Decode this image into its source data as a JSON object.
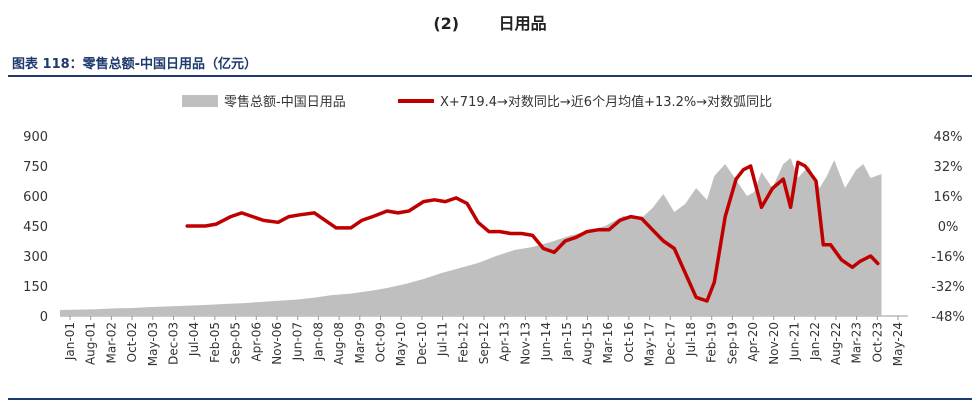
{
  "heading": {
    "number": "(2)",
    "title": "日用品"
  },
  "figure_title": "图表 118：零售总额-中国日用品（亿元）",
  "colors": {
    "area": "#bfbfbf",
    "line": "#c00000",
    "title": "#1f3a6e"
  },
  "chart_data": {
    "type": "area",
    "title": "",
    "legend_position": "top",
    "grid": false,
    "y_left": {
      "min": 0,
      "max": 900,
      "ticks": [
        "0",
        "150",
        "300",
        "450",
        "600",
        "750",
        "900"
      ]
    },
    "y_right": {
      "min": -48,
      "max": 48,
      "ticks": [
        "-48%",
        "-32%",
        "-16%",
        "0%",
        "16%",
        "32%",
        "48%"
      ]
    },
    "x_ticks": [
      "Jan-01",
      "Aug-01",
      "Mar-02",
      "Oct-02",
      "May-03",
      "Dec-03",
      "Jul-04",
      "Feb-05",
      "Sep-05",
      "Apr-06",
      "Nov-06",
      "Jun-07",
      "Jan-08",
      "Aug-08",
      "Mar-09",
      "Oct-09",
      "May-10",
      "Dec-10",
      "Jul-11",
      "Feb-12",
      "Sep-12",
      "Apr-13",
      "Nov-13",
      "Jun-14",
      "Jan-15",
      "Aug-15",
      "Mar-16",
      "Oct-16",
      "May-17",
      "Dec-17",
      "Jul-18",
      "Feb-19",
      "Sep-19",
      "Apr-20",
      "Nov-20",
      "Jun-21",
      "Jan-22",
      "Aug-22",
      "Mar-23",
      "Oct-23",
      "May-24"
    ],
    "series": [
      {
        "name": "零售总额-中国日用品",
        "type": "area",
        "axis": "left",
        "x": [
          2001.0,
          2001.5,
          2002.0,
          2002.5,
          2003.0,
          2003.5,
          2004.0,
          2004.5,
          2005.0,
          2005.5,
          2006.0,
          2006.5,
          2007.0,
          2007.5,
          2008.0,
          2008.5,
          2009.0,
          2009.5,
          2010.0,
          2010.5,
          2011.0,
          2011.5,
          2012.0,
          2012.5,
          2013.0,
          2013.5,
          2014.0,
          2014.5,
          2015.0,
          2015.5,
          2016.0,
          2016.5,
          2017.0,
          2017.3,
          2017.6,
          2017.9,
          2018.2,
          2018.5,
          2018.8,
          2019.0,
          2019.3,
          2019.6,
          2019.9,
          2020.1,
          2020.3,
          2020.6,
          2020.9,
          2021.1,
          2021.3,
          2021.6,
          2021.9,
          2022.1,
          2022.3,
          2022.6,
          2022.9,
          2023.1,
          2023.3,
          2023.6
        ],
        "values": [
          30,
          32,
          34,
          38,
          40,
          45,
          48,
          52,
          55,
          60,
          64,
          70,
          76,
          82,
          92,
          105,
          112,
          125,
          140,
          160,
          185,
          215,
          240,
          265,
          300,
          330,
          345,
          370,
          400,
          425,
          450,
          500,
          490,
          540,
          610,
          520,
          560,
          640,
          580,
          700,
          760,
          680,
          600,
          620,
          720,
          640,
          760,
          790,
          690,
          750,
          640,
          700,
          780,
          640,
          730,
          760,
          690,
          710
        ]
      },
      {
        "name": "X+719.4→对数同比→近6个月均值+13.2%→对数弧同比",
        "type": "line",
        "axis": "right",
        "x": [
          2004.5,
          2005.0,
          2005.3,
          2005.7,
          2006.0,
          2006.3,
          2006.6,
          2007.0,
          2007.3,
          2007.6,
          2008.0,
          2008.3,
          2008.6,
          2009.0,
          2009.3,
          2009.6,
          2010.0,
          2010.3,
          2010.6,
          2011.0,
          2011.3,
          2011.6,
          2011.9,
          2012.2,
          2012.5,
          2012.8,
          2013.1,
          2013.4,
          2013.7,
          2014.0,
          2014.3,
          2014.6,
          2014.9,
          2015.2,
          2015.5,
          2015.8,
          2016.1,
          2016.4,
          2016.7,
          2017.0,
          2017.3,
          2017.6,
          2017.9,
          2018.2,
          2018.5,
          2018.8,
          2019.0,
          2019.3,
          2019.6,
          2019.8,
          2020.0,
          2020.3,
          2020.6,
          2020.9,
          2021.1,
          2021.3,
          2021.5,
          2021.8,
          2022.0,
          2022.2,
          2022.5,
          2022.8,
          2023.0,
          2023.3,
          2023.5
        ],
        "values": [
          0,
          0,
          1,
          5,
          7,
          5,
          3,
          2,
          5,
          6,
          7,
          3,
          -1,
          -1,
          3,
          5,
          8,
          7,
          8,
          13,
          14,
          13,
          15,
          12,
          2,
          -3,
          -3,
          -4,
          -4,
          -5,
          -12,
          -14,
          -8,
          -6,
          -3,
          -2,
          -2,
          3,
          5,
          4,
          -2,
          -8,
          -12,
          -25,
          -38,
          -40,
          -30,
          5,
          25,
          30,
          32,
          10,
          20,
          25,
          10,
          34,
          32,
          24,
          -10,
          -10,
          -18,
          -22,
          -19,
          -16,
          -20
        ]
      }
    ]
  }
}
